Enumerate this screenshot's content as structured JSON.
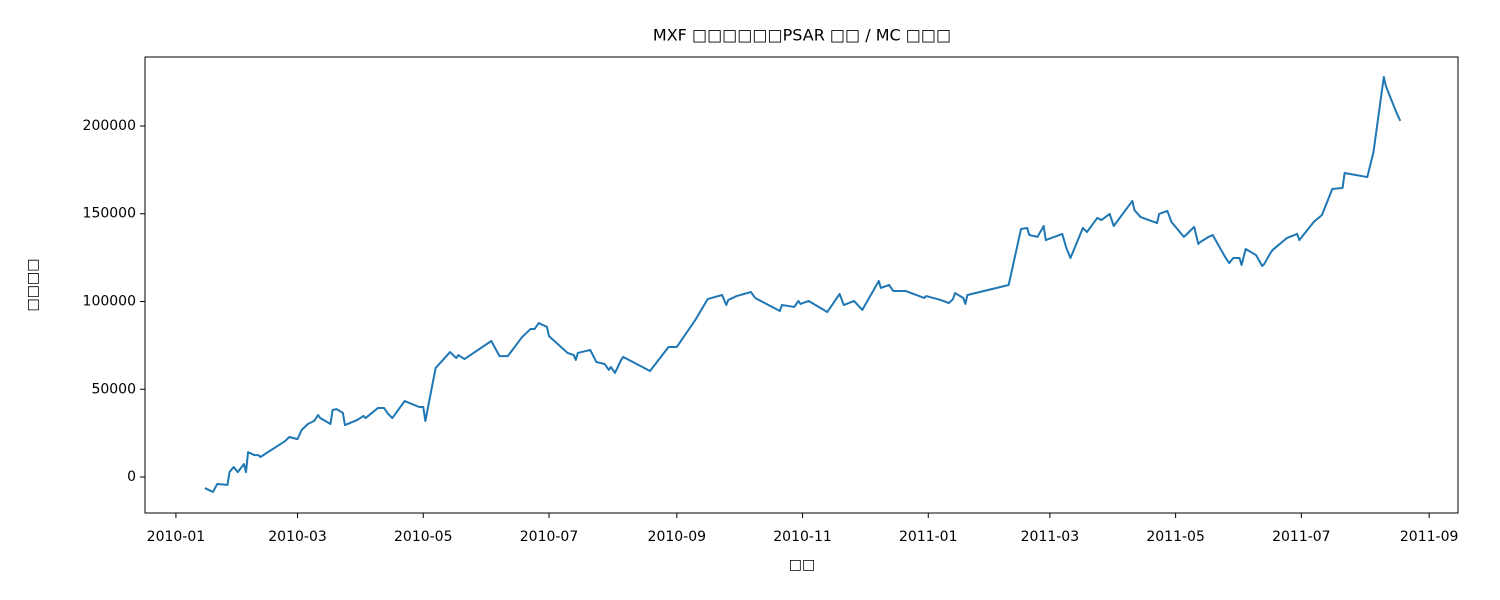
{
  "chart_data": {
    "type": "line",
    "title": "MXF □□□□□□PSAR □□ / MC □□□",
    "xlabel": "□□",
    "ylabel": "□□□□",
    "color": "#1f77b4",
    "xlim": [
      "2009-12-17",
      "2011-09-15"
    ],
    "xticks": [
      "2010-01",
      "2010-03",
      "2010-05",
      "2010-07",
      "2010-09",
      "2010-11",
      "2011-01",
      "2011-03",
      "2011-05",
      "2011-07",
      "2011-09"
    ],
    "ylim": [
      -20500,
      239300
    ],
    "yticks": [
      0,
      50000,
      100000,
      150000,
      200000
    ],
    "x": [
      "2010-01-15",
      "2010-01-19",
      "2010-01-21",
      "2010-01-26",
      "2010-01-27",
      "2010-01-29",
      "2010-01-31",
      "2010-02-03",
      "2010-02-04",
      "2010-02-05",
      "2010-02-08",
      "2010-02-10",
      "2010-02-11",
      "2010-02-23",
      "2010-02-25",
      "2010-03-01",
      "2010-03-03",
      "2010-03-06",
      "2010-03-09",
      "2010-03-11",
      "2010-03-12",
      "2010-03-17",
      "2010-03-18",
      "2010-03-20",
      "2010-03-23",
      "2010-03-24",
      "2010-03-30",
      "2010-04-02",
      "2010-04-03",
      "2010-04-09",
      "2010-04-12",
      "2010-04-14",
      "2010-04-16",
      "2010-04-22",
      "2010-04-29",
      "2010-05-01",
      "2010-05-02",
      "2010-05-07",
      "2010-05-14",
      "2010-05-17",
      "2010-05-18",
      "2010-05-21",
      "2010-06-03",
      "2010-06-07",
      "2010-06-11",
      "2010-06-18",
      "2010-06-22",
      "2010-06-24",
      "2010-06-26",
      "2010-06-30",
      "2010-07-01",
      "2010-07-10",
      "2010-07-13",
      "2010-07-14",
      "2010-07-15",
      "2010-07-21",
      "2010-07-24",
      "2010-07-28",
      "2010-07-30",
      "2010-07-31",
      "2010-08-02",
      "2010-08-05",
      "2010-08-06",
      "2010-08-19",
      "2010-08-28",
      "2010-09-01",
      "2010-09-10",
      "2010-09-16",
      "2010-09-23",
      "2010-09-25",
      "2010-09-26",
      "2010-09-30",
      "2010-10-07",
      "2010-10-09",
      "2010-10-21",
      "2010-10-22",
      "2010-10-28",
      "2010-10-30",
      "2010-10-31",
      "2010-11-04",
      "2010-11-13",
      "2010-11-19",
      "2010-11-21",
      "2010-11-26",
      "2010-11-30",
      "2010-12-08",
      "2010-12-09",
      "2010-12-13",
      "2010-12-15",
      "2010-12-21",
      "2010-12-30",
      "2010-12-31",
      "2011-01-07",
      "2011-01-11",
      "2011-01-13",
      "2011-01-14",
      "2011-01-18",
      "2011-01-19",
      "2011-01-20",
      "2011-02-09",
      "2011-02-15",
      "2011-02-18",
      "2011-02-19",
      "2011-02-23",
      "2011-02-26",
      "2011-02-27",
      "2011-03-07",
      "2011-03-09",
      "2011-03-11",
      "2011-03-17",
      "2011-03-19",
      "2011-03-24",
      "2011-03-26",
      "2011-03-30",
      "2011-04-01",
      "2011-04-10",
      "2011-04-11",
      "2011-04-14",
      "2011-04-22",
      "2011-04-23",
      "2011-04-27",
      "2011-04-29",
      "2011-05-05",
      "2011-05-06",
      "2011-05-10",
      "2011-05-12",
      "2011-05-13",
      "2011-05-17",
      "2011-05-19",
      "2011-05-25",
      "2011-05-27",
      "2011-05-29",
      "2011-06-01",
      "2011-06-02",
      "2011-06-04",
      "2011-06-09",
      "2011-06-12",
      "2011-06-13",
      "2011-06-16",
      "2011-06-17",
      "2011-06-24",
      "2011-06-29",
      "2011-06-30",
      "2011-07-07",
      "2011-07-11",
      "2011-07-16",
      "2011-07-21",
      "2011-07-22",
      "2011-08-02",
      "2011-08-05",
      "2011-08-10",
      "2011-08-11",
      "2011-08-16",
      "2011-08-18"
    ],
    "values": [
      -6300,
      -8500,
      -4000,
      -4500,
      2800,
      5700,
      2800,
      7400,
      2800,
      14200,
      12500,
      12500,
      11400,
      20500,
      22800,
      21600,
      26800,
      30200,
      31900,
      35300,
      33600,
      30200,
      38200,
      38700,
      36500,
      29600,
      32500,
      34800,
      33600,
      39300,
      39300,
      35900,
      33600,
      43300,
      39900,
      39900,
      31900,
      62100,
      71200,
      67800,
      69500,
      67200,
      77500,
      68900,
      68900,
      79800,
      84300,
      84300,
      87700,
      85500,
      80300,
      70700,
      69500,
      66700,
      70700,
      72400,
      65500,
      64400,
      61000,
      62700,
      59300,
      66700,
      68400,
      60400,
      74100,
      74100,
      89500,
      101400,
      103700,
      98000,
      100900,
      103100,
      105400,
      102000,
      94600,
      98000,
      96900,
      100300,
      98600,
      100300,
      94000,
      104300,
      98000,
      100300,
      95200,
      111700,
      107700,
      109400,
      106000,
      106000,
      102000,
      103100,
      100900,
      99100,
      101400,
      104800,
      102000,
      98600,
      103700,
      109400,
      141300,
      141900,
      137900,
      136800,
      143000,
      135000,
      138500,
      130500,
      124800,
      141900,
      139600,
      147600,
      146400,
      149900,
      143000,
      157300,
      152100,
      148100,
      144700,
      149900,
      151600,
      145300,
      136800,
      137900,
      142500,
      132800,
      133900,
      136800,
      137900,
      125400,
      121900,
      124800,
      124800,
      120800,
      129900,
      126500,
      120200,
      121400,
      127600,
      129300,
      136200,
      138500,
      135000,
      145300,
      149300,
      164100,
      164700,
      173200,
      170900,
      185200,
      227900,
      222800,
      208000,
      202900
    ]
  }
}
